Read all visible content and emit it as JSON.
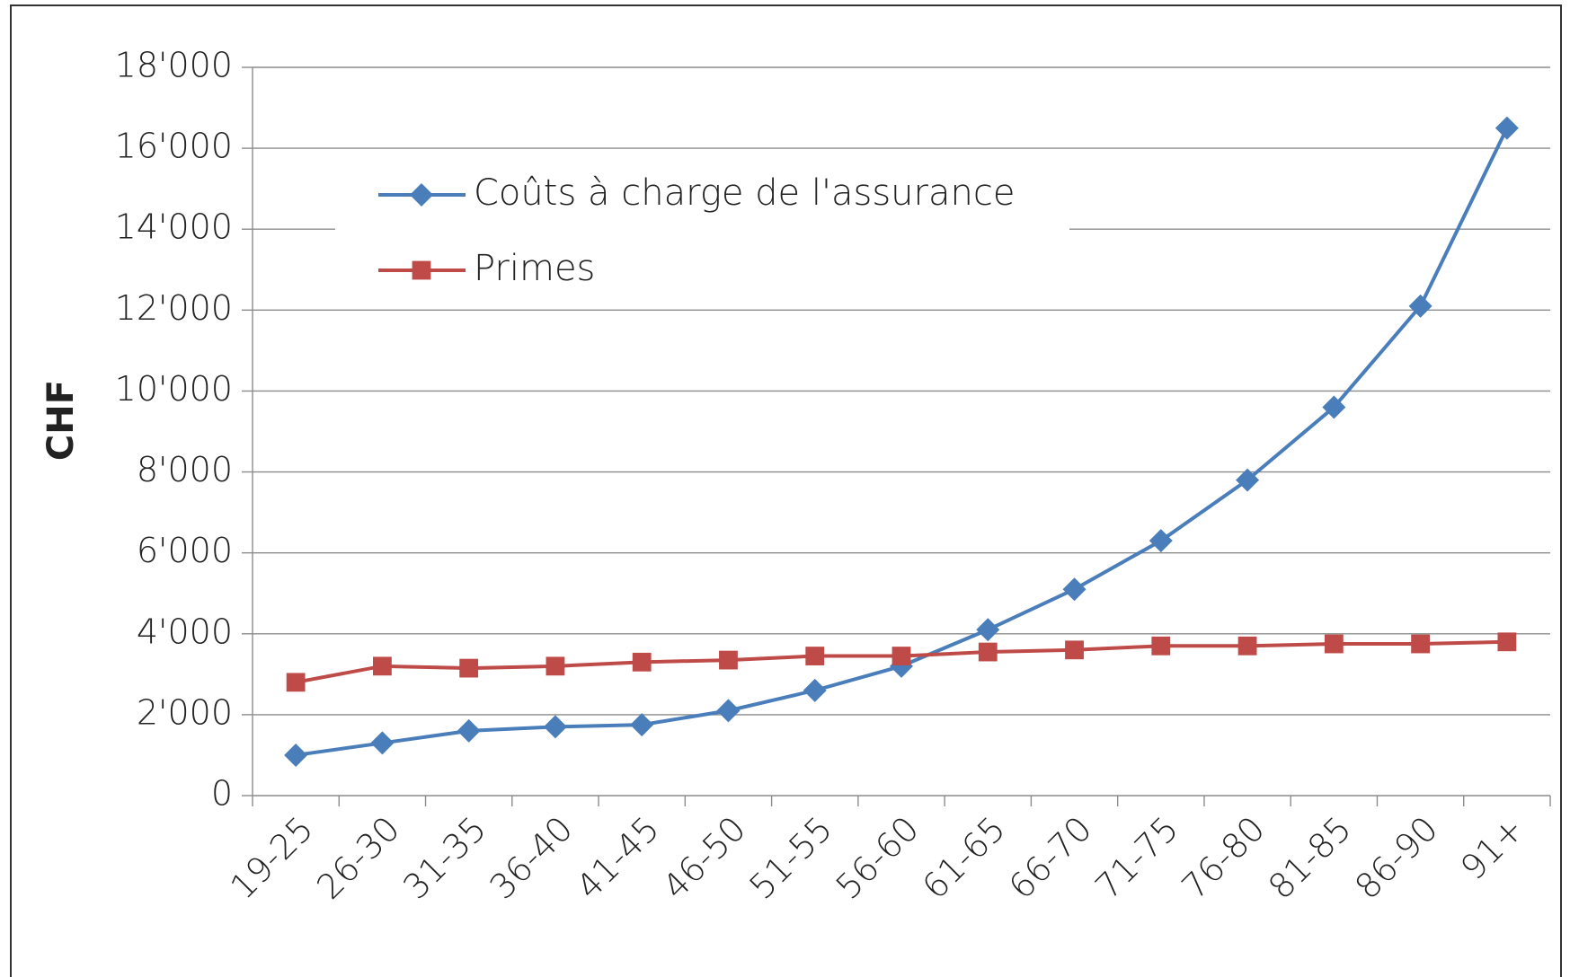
{
  "chart_data": {
    "type": "line",
    "ylabel": "CHF",
    "categories": [
      "19-25",
      "26-30",
      "31-35",
      "36-40",
      "41-45",
      "46-50",
      "51-55",
      "56-60",
      "61-65",
      "66-70",
      "71-75",
      "76-80",
      "81-85",
      "86-90",
      "91+"
    ],
    "series": [
      {
        "name": "Coûts à charge de l'assurance",
        "color": "#4a7ebb",
        "marker": "diamond",
        "values": [
          1000,
          1300,
          1600,
          1700,
          1750,
          2100,
          2600,
          3200,
          4100,
          5100,
          6300,
          7800,
          9600,
          12100,
          16500
        ]
      },
      {
        "name": "Primes",
        "color": "#be4b48",
        "marker": "square",
        "values": [
          2800,
          3200,
          3150,
          3200,
          3300,
          3350,
          3450,
          3450,
          3550,
          3600,
          3700,
          3700,
          3750,
          3750,
          3800
        ]
      }
    ],
    "ylim": [
      0,
      18000
    ],
    "yticks": [
      0,
      {
        "value": 2000,
        "label": "2'000"
      },
      {
        "value": 4000,
        "label": "4'000"
      },
      {
        "value": 6000,
        "label": "6'000"
      },
      {
        "value": 8000,
        "label": "8'000"
      },
      {
        "value": 10000,
        "label": "10'000"
      },
      {
        "value": 12000,
        "label": "12'000"
      },
      {
        "value": 14000,
        "label": "14'000"
      },
      {
        "value": 16000,
        "label": "16'000"
      },
      {
        "value": 18000,
        "label": "18'000"
      }
    ],
    "grid": true,
    "legend": "upper-left"
  }
}
